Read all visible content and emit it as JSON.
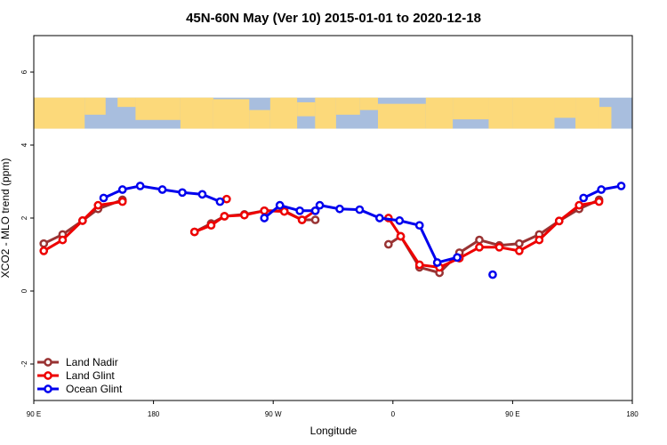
{
  "chart_data": {
    "type": "line",
    "title": "45N-60N May (Ver 10)   2015-01-01 to 2020-12-18",
    "xlabel": "Longitude",
    "ylabel": "XCO2 - MLO trend (ppm)",
    "xlim": [
      -90,
      180
    ],
    "ylim": [
      -3,
      7
    ],
    "x_ticks": [
      {
        "value": -90,
        "label": "90 E"
      },
      {
        "value": -36,
        "label": "180"
      },
      {
        "value": 18,
        "label": "90 W"
      },
      {
        "value": 72,
        "label": "0"
      },
      {
        "value": 126,
        "label": "90 E"
      },
      {
        "value": 180,
        "label": "180"
      }
    ],
    "y_ticks": [
      {
        "value": -2,
        "label": "-2"
      },
      {
        "value": 0,
        "label": "0"
      },
      {
        "value": 2,
        "label": "2"
      },
      {
        "value": 4,
        "label": "4"
      },
      {
        "value": 6,
        "label": "6"
      }
    ],
    "map_strip": {
      "y_range": [
        4.45,
        5.3
      ],
      "ocean_color": "#a8bede",
      "land_color": "#fcd97a"
    },
    "legend_position": "bottom-left",
    "series": [
      {
        "name": "Land Nadir",
        "color": "#993333",
        "segments": [
          [
            [
              -85.5,
              1.3
            ],
            [
              -77,
              1.55
            ],
            [
              -68,
              1.93
            ],
            [
              -61,
              2.25
            ],
            [
              -50,
              2.5
            ]
          ],
          [
            [
              -17.5,
              1.62
            ],
            [
              -10,
              1.85
            ],
            [
              -4,
              2.05
            ],
            [
              5,
              2.1
            ],
            [
              14,
              2.2
            ],
            [
              23,
              2.2
            ],
            [
              31,
              1.95
            ],
            [
              37,
              1.95
            ]
          ],
          [
            [
              70,
              1.28
            ],
            [
              75.5,
              1.5
            ],
            [
              84,
              0.65
            ],
            [
              93,
              0.5
            ],
            [
              102,
              1.05
            ],
            [
              111,
              1.4
            ],
            [
              120,
              1.25
            ],
            [
              129,
              1.3
            ],
            [
              138,
              1.55
            ],
            [
              147,
              1.92
            ],
            [
              156,
              2.25
            ],
            [
              165,
              2.5
            ]
          ]
        ],
        "isolated": []
      },
      {
        "name": "Land Glint",
        "color": "#ee0000",
        "segments": [
          [
            [
              -85.5,
              1.1
            ],
            [
              -77,
              1.4
            ],
            [
              -68,
              1.93
            ],
            [
              -61,
              2.35
            ],
            [
              -50,
              2.45
            ]
          ],
          [
            [
              -3,
              2.52
            ]
          ],
          [
            [
              -17.5,
              1.62
            ],
            [
              -10,
              1.8
            ],
            [
              -4,
              2.05
            ],
            [
              5,
              2.08
            ],
            [
              14,
              2.2
            ],
            [
              23,
              2.18
            ],
            [
              31,
              1.95
            ],
            [
              37,
              2.2
            ]
          ],
          [
            [
              70,
              2.0
            ],
            [
              75.5,
              1.5
            ],
            [
              84,
              0.72
            ],
            [
              93,
              0.65
            ],
            [
              102,
              0.9
            ],
            [
              111,
              1.2
            ],
            [
              120,
              1.2
            ],
            [
              129,
              1.1
            ],
            [
              138,
              1.4
            ],
            [
              147,
              1.92
            ],
            [
              156,
              2.35
            ],
            [
              165,
              2.45
            ]
          ]
        ],
        "isolated": []
      },
      {
        "name": "Ocean Glint",
        "color": "#0000ee",
        "segments": [
          [
            [
              -58.5,
              2.55
            ],
            [
              -50,
              2.78
            ],
            [
              -42,
              2.88
            ],
            [
              -32,
              2.78
            ],
            [
              -23,
              2.7
            ],
            [
              -14,
              2.65
            ],
            [
              -6,
              2.45
            ]
          ],
          [
            [
              14,
              2.0
            ],
            [
              21,
              2.35
            ],
            [
              30,
              2.2
            ],
            [
              37,
              2.2
            ],
            [
              39,
              2.35
            ],
            [
              48,
              2.25
            ],
            [
              57,
              2.23
            ],
            [
              66,
              2.0
            ],
            [
              75,
              1.93
            ],
            [
              84,
              1.8
            ],
            [
              92,
              0.78
            ],
            [
              101,
              0.92
            ]
          ],
          [
            [
              158,
              2.55
            ],
            [
              166,
              2.78
            ],
            [
              175,
              2.88
            ]
          ]
        ],
        "isolated": [
          [
            117,
            0.45
          ]
        ]
      }
    ]
  }
}
